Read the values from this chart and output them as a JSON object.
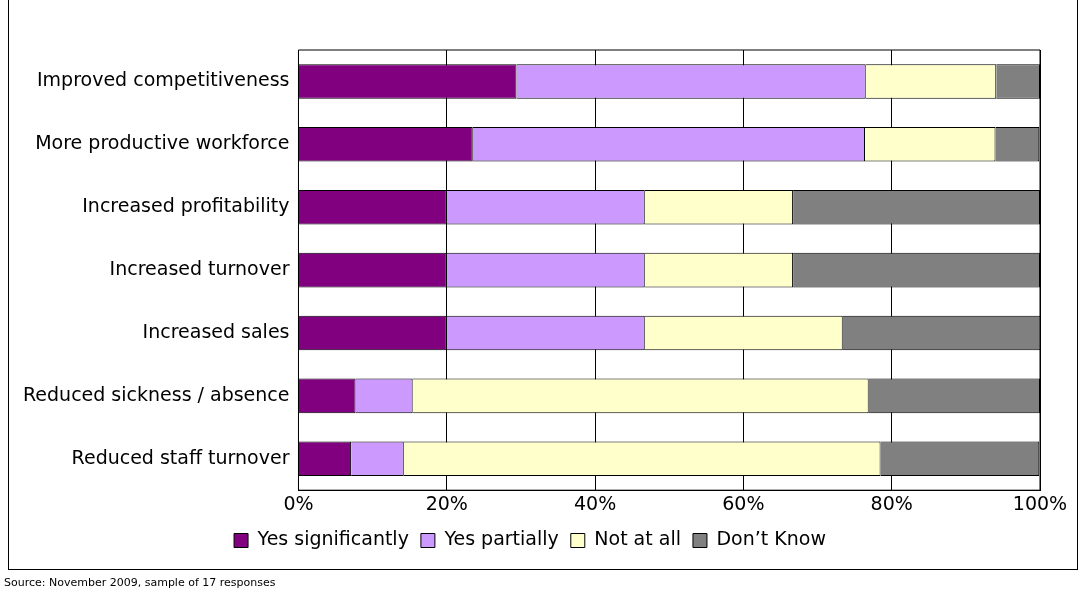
{
  "chart_data": {
    "type": "bar",
    "orientation": "horizontal",
    "stacked": true,
    "categories": [
      "Improved competitiveness",
      "More productive workforce",
      "Increased profitability",
      "Increased turnover",
      "Increased sales",
      "Reduced sickness / absence",
      "Reduced staff turnover"
    ],
    "series": [
      {
        "name": "Yes significantly",
        "color": "#800080",
        "values": [
          29.4,
          23.5,
          20,
          20,
          20,
          7.7,
          7.1
        ]
      },
      {
        "name": "Yes partially",
        "color": "#cc99ff",
        "values": [
          47.1,
          52.9,
          26.7,
          26.7,
          26.7,
          7.7,
          7.1
        ]
      },
      {
        "name": "Not at all",
        "color": "#ffffcc",
        "values": [
          17.6,
          17.6,
          20,
          20,
          26.7,
          61.5,
          64.3
        ]
      },
      {
        "name": "Don’t Know",
        "color": "#808080",
        "values": [
          5.9,
          5.9,
          33.3,
          33.3,
          26.7,
          23.1,
          21.4
        ]
      }
    ],
    "xlim": [
      0,
      100
    ],
    "xticks": [
      {
        "value": 0,
        "label": "0%"
      },
      {
        "value": 20,
        "label": "20%"
      },
      {
        "value": 40,
        "label": "40%"
      },
      {
        "value": 60,
        "label": "60%"
      },
      {
        "value": 80,
        "label": "80%"
      },
      {
        "value": 100,
        "label": "100%"
      }
    ],
    "grid": "x",
    "legend": "bottom",
    "annotations": [
      "Source: November 2009, sample of 17 responses"
    ]
  }
}
